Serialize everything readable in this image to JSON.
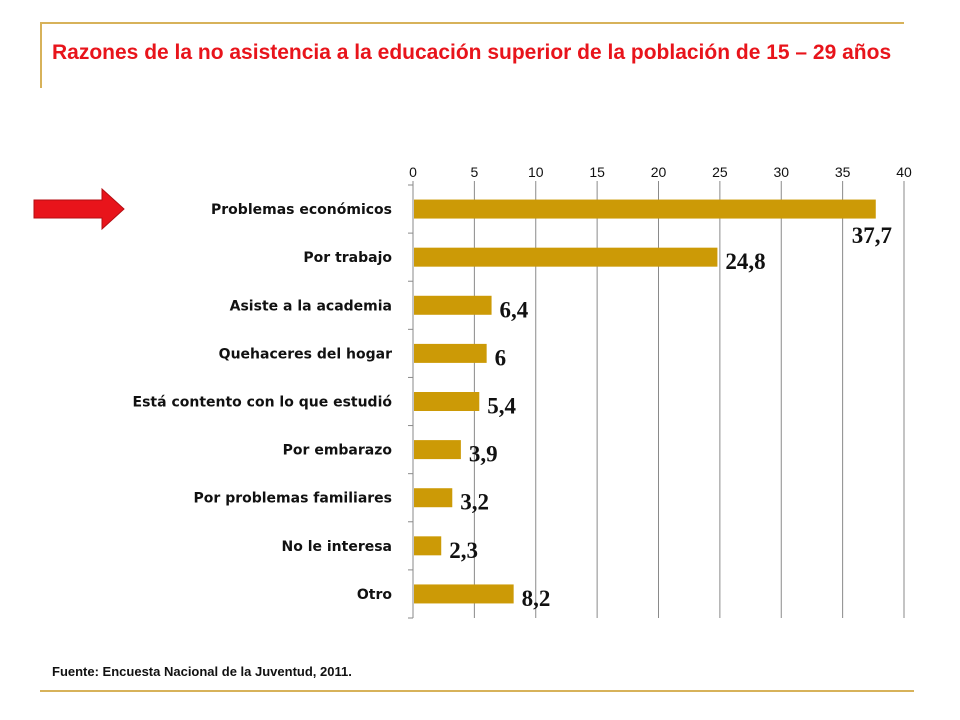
{
  "title": "Razones de la no asistencia a la educación superior de la población de 15 – 29 años",
  "source": "Fuente: Encuesta Nacional de la Juventud, 2011.",
  "colors": {
    "bar": "#cc9a06",
    "title": "#e8141b",
    "arrow": "#e8141b",
    "rule": "#d7b25a"
  },
  "chart_data": {
    "type": "bar",
    "orientation": "horizontal",
    "title": "",
    "xlabel": "",
    "ylabel": "",
    "xlim": [
      0,
      40
    ],
    "ticks": [
      0,
      5,
      10,
      15,
      20,
      25,
      30,
      35,
      40
    ],
    "axis_position": "top",
    "grid": true,
    "categories": [
      "Problemas económicos",
      "Por trabajo",
      "Asiste a la academia",
      "Quehaceres del hogar",
      "Está contento con lo que estudió",
      "Por embarazo",
      "Por problemas familiares",
      "No le interesa",
      "Otro"
    ],
    "values": [
      37.7,
      24.8,
      6.4,
      6,
      5.4,
      3.9,
      3.2,
      2.3,
      8.2
    ],
    "value_labels": [
      "37,7",
      "24,8",
      "6,4",
      "6",
      "5,4",
      "3,9",
      "3,2",
      "2,3",
      "8,2"
    ],
    "highlight": "Problemas económicos"
  }
}
